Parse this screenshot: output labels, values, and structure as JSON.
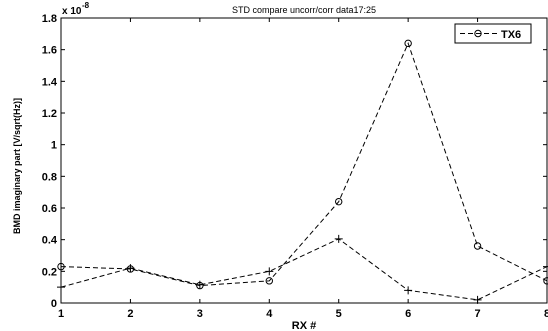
{
  "chart_data": {
    "type": "line",
    "title": "STD compare uncorr/corr data17:25",
    "xlabel": "RX #",
    "ylabel": "BMD imaginary part [V/sqrt(Hz)]",
    "y_exponent_label": "x 10",
    "y_exponent_power": "-8",
    "xlim": [
      1,
      8
    ],
    "ylim": [
      0,
      1.8
    ],
    "x_ticks": [
      1,
      2,
      3,
      4,
      5,
      6,
      7,
      8
    ],
    "y_ticks": [
      0,
      0.2,
      0.4,
      0.6,
      0.8,
      1,
      1.2,
      1.4,
      1.6,
      1.8
    ],
    "x": [
      1,
      2,
      3,
      4,
      5,
      6,
      7,
      8
    ],
    "series": [
      {
        "name": "TX6",
        "marker": "circle",
        "values": [
          0.23,
          0.215,
          0.11,
          0.14,
          0.64,
          1.64,
          0.36,
          0.14
        ]
      },
      {
        "marker": "plus",
        "values": [
          0.1,
          0.22,
          0.115,
          0.2,
          0.405,
          0.08,
          0.02,
          0.23
        ]
      }
    ],
    "legend": {
      "placement": "top-right",
      "entries": [
        "TX6"
      ]
    },
    "grid": false,
    "line_style": "dashed",
    "line_color": "#000000"
  }
}
